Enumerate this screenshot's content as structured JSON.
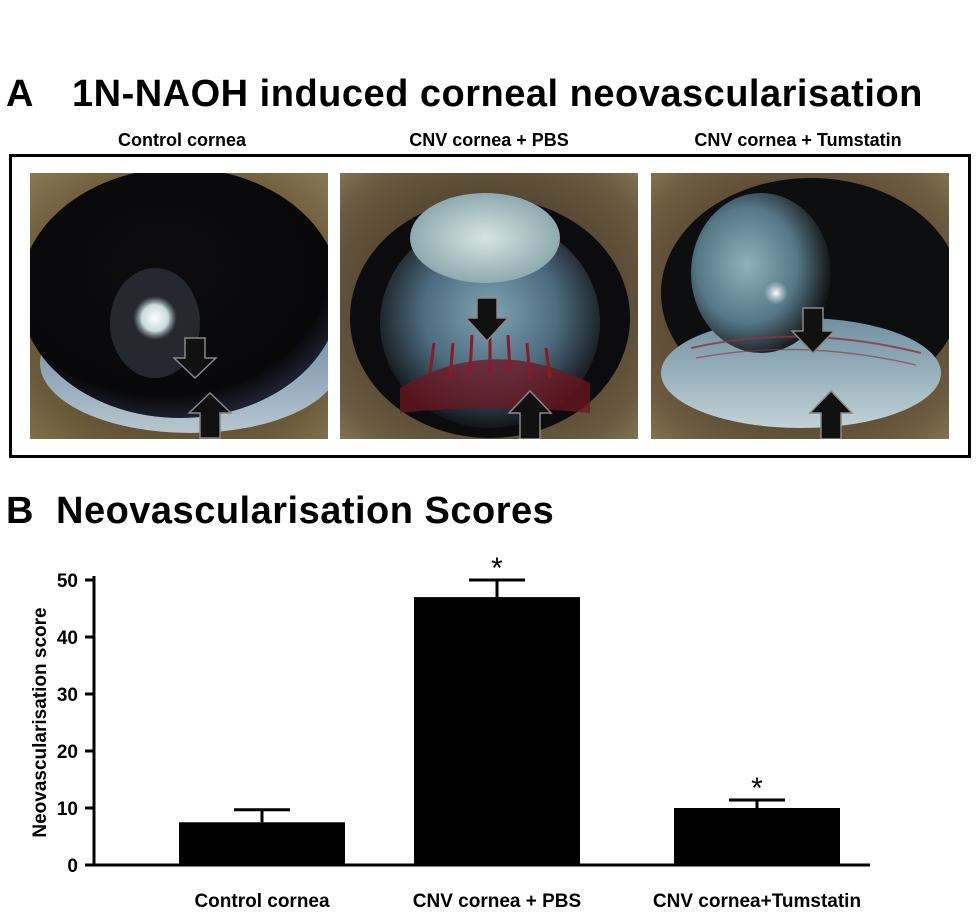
{
  "panel_a": {
    "letter": "A",
    "title": "1N-NAOH induced corneal neovascularisation",
    "images": [
      {
        "label": "Control cornea"
      },
      {
        "label": "CNV cornea + PBS"
      },
      {
        "label": "CNV cornea + Tumstatin"
      }
    ]
  },
  "panel_b": {
    "letter": "B",
    "title": "Neovascularisation Scores"
  },
  "chart_data": {
    "type": "bar",
    "categories": [
      "Control cornea",
      "CNV cornea + PBS",
      "CNV cornea+Tumstatin"
    ],
    "values": [
      7.5,
      47,
      10
    ],
    "errors": [
      2.2,
      3,
      1.4
    ],
    "significance": [
      "",
      "*",
      "*"
    ],
    "ylabel": "Neovascularisation score",
    "xlabel": "",
    "ylim": [
      0,
      50
    ],
    "yticks": [
      0,
      10,
      20,
      30,
      40,
      50
    ],
    "bar_color": "#000000",
    "grid": false
  }
}
